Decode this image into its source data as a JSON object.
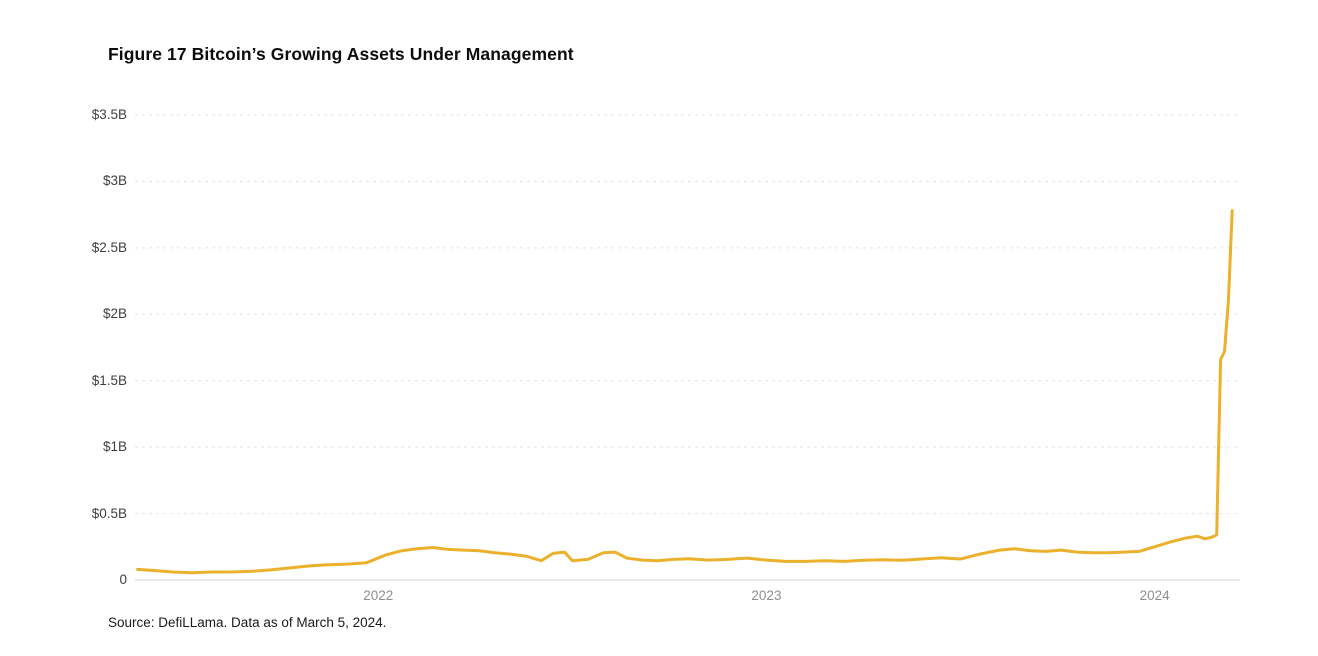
{
  "title": "Figure 17 Bitcoin’s Growing Assets Under Management",
  "source": "Source: DefiLLama. Data as of March 5, 2024.",
  "colors": {
    "line": "#EBB02C",
    "gridline": "#e4e4e4",
    "baseline": "#d9d9d9",
    "y_label": "#3f3f3f",
    "x_label": "#8e8e8e",
    "background": "#ffffff"
  },
  "chart_data": {
    "type": "line",
    "title": "Figure 17 Bitcoin’s Growing Assets Under Management",
    "xlabel": "",
    "ylabel": "",
    "x_unit": "decimal_year",
    "xlim": [
      2021.35,
      2024.22
    ],
    "ylim": [
      0,
      3.5
    ],
    "grid": "dashed-horizontal",
    "legend": "none",
    "y_ticks": [
      {
        "value": 0,
        "label": "0"
      },
      {
        "value": 0.5,
        "label": "$0.5B"
      },
      {
        "value": 1,
        "label": "$1B"
      },
      {
        "value": 1.5,
        "label": "$1.5B"
      },
      {
        "value": 2,
        "label": "$2B"
      },
      {
        "value": 2.5,
        "label": "$2.5B"
      },
      {
        "value": 3,
        "label": "$3B"
      },
      {
        "value": 3.5,
        "label": "$3.5B"
      }
    ],
    "x_ticks": [
      {
        "value": 2022,
        "label": "2022"
      },
      {
        "value": 2023,
        "label": "2023"
      },
      {
        "value": 2024,
        "label": "2024"
      }
    ],
    "series": [
      {
        "name": "Bitcoin assets under management ($B)",
        "points": [
          [
            2021.38,
            0.08
          ],
          [
            2021.43,
            0.07
          ],
          [
            2021.47,
            0.06
          ],
          [
            2021.52,
            0.055
          ],
          [
            2021.57,
            0.06
          ],
          [
            2021.62,
            0.06
          ],
          [
            2021.67,
            0.065
          ],
          [
            2021.72,
            0.075
          ],
          [
            2021.77,
            0.09
          ],
          [
            2021.82,
            0.105
          ],
          [
            2021.87,
            0.115
          ],
          [
            2021.92,
            0.12
          ],
          [
            2021.97,
            0.13
          ],
          [
            2022.02,
            0.19
          ],
          [
            2022.06,
            0.22
          ],
          [
            2022.1,
            0.235
          ],
          [
            2022.14,
            0.245
          ],
          [
            2022.18,
            0.23
          ],
          [
            2022.22,
            0.225
          ],
          [
            2022.26,
            0.22
          ],
          [
            2022.3,
            0.205
          ],
          [
            2022.34,
            0.195
          ],
          [
            2022.38,
            0.18
          ],
          [
            2022.42,
            0.145
          ],
          [
            2022.45,
            0.2
          ],
          [
            2022.48,
            0.21
          ],
          [
            2022.5,
            0.145
          ],
          [
            2022.54,
            0.155
          ],
          [
            2022.58,
            0.205
          ],
          [
            2022.61,
            0.21
          ],
          [
            2022.64,
            0.165
          ],
          [
            2022.68,
            0.15
          ],
          [
            2022.72,
            0.145
          ],
          [
            2022.76,
            0.155
          ],
          [
            2022.8,
            0.16
          ],
          [
            2022.85,
            0.15
          ],
          [
            2022.9,
            0.155
          ],
          [
            2022.95,
            0.165
          ],
          [
            2023.0,
            0.15
          ],
          [
            2023.05,
            0.14
          ],
          [
            2023.1,
            0.14
          ],
          [
            2023.15,
            0.145
          ],
          [
            2023.2,
            0.14
          ],
          [
            2023.25,
            0.148
          ],
          [
            2023.3,
            0.152
          ],
          [
            2023.35,
            0.148
          ],
          [
            2023.4,
            0.158
          ],
          [
            2023.45,
            0.168
          ],
          [
            2023.5,
            0.158
          ],
          [
            2023.55,
            0.195
          ],
          [
            2023.6,
            0.225
          ],
          [
            2023.64,
            0.235
          ],
          [
            2023.68,
            0.22
          ],
          [
            2023.72,
            0.215
          ],
          [
            2023.76,
            0.225
          ],
          [
            2023.8,
            0.21
          ],
          [
            2023.84,
            0.205
          ],
          [
            2023.88,
            0.205
          ],
          [
            2023.92,
            0.21
          ],
          [
            2023.96,
            0.215
          ],
          [
            2024.0,
            0.25
          ],
          [
            2024.04,
            0.285
          ],
          [
            2024.08,
            0.315
          ],
          [
            2024.11,
            0.33
          ],
          [
            2024.13,
            0.31
          ],
          [
            2024.15,
            0.325
          ],
          [
            2024.16,
            0.34
          ],
          [
            2024.17,
            1.66
          ],
          [
            2024.18,
            1.72
          ],
          [
            2024.19,
            2.1
          ],
          [
            2024.2,
            2.78
          ]
        ]
      }
    ]
  }
}
